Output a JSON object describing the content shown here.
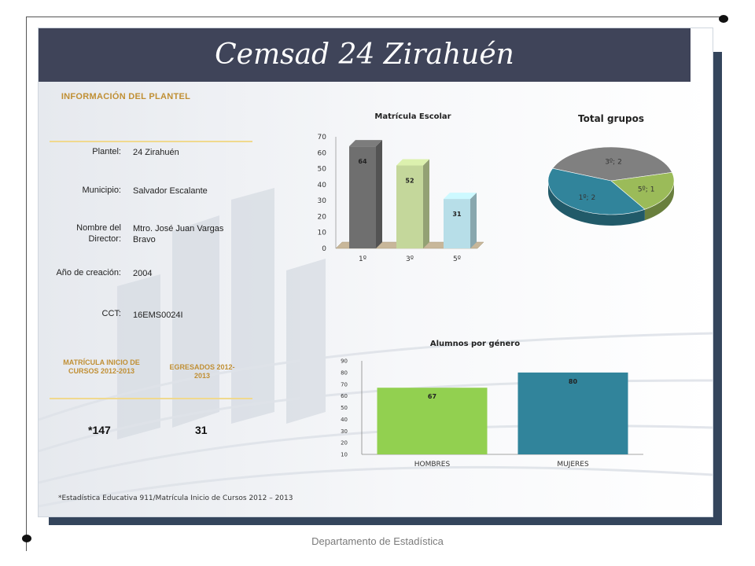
{
  "title": "Cemsad 24 Zirahuén",
  "info": {
    "heading": "INFORMACIÓN DEL PLANTEL",
    "plantel_label": "Plantel:",
    "plantel_value": "24 Zirahuén",
    "municipio_label": "Municipio:",
    "municipio_value": "Salvador Escalante",
    "director_label": "Nombre del Director:",
    "director_value": "Mtro. José Juan Vargas Bravo",
    "anio_label": "Año de creación:",
    "anio_value": "2004",
    "cct_label": "CCT:",
    "cct_value": "16EMS0024I"
  },
  "stats": {
    "matricula_heading": "MATRÍCULA INICIO DE CURSOS 2012-2013",
    "egresados_heading": "EGRESADOS 2012-2013",
    "matricula_value": "*147",
    "egresados_value": "31"
  },
  "footnote": "*Estadística Educativa 911/Matrícula Inicio de Cursos 2012 – 2013",
  "footer": "Departamento de Estadística",
  "colors": {
    "title_band": "#3f4459",
    "frame": "#34455c",
    "heading_gold": "#c08f34"
  },
  "chart_data": [
    {
      "type": "bar",
      "title": "Matrícula Escolar",
      "categories": [
        "1º",
        "3º",
        "5º"
      ],
      "values": [
        64,
        52,
        31
      ],
      "ylim": [
        0,
        70
      ],
      "yticks": [
        0,
        10,
        20,
        30,
        40,
        50,
        60,
        70
      ],
      "colors": [
        "#6f6f6f",
        "#c4d79b",
        "#b7dee8"
      ]
    },
    {
      "type": "pie",
      "title": "Total grupos",
      "slices": [
        {
          "label": "1º; 2",
          "value": 2,
          "color": "#31849b"
        },
        {
          "label": "3º; 2",
          "value": 2,
          "color": "#808080"
        },
        {
          "label": "5º; 1",
          "value": 1,
          "color": "#9bbb59"
        }
      ]
    },
    {
      "type": "bar",
      "title": "Alumnos por género",
      "categories": [
        "HOMBRES",
        "MUJERES"
      ],
      "values": [
        67,
        80
      ],
      "ylim": [
        10,
        90
      ],
      "yticks": [
        10,
        20,
        30,
        40,
        50,
        60,
        70,
        80,
        90
      ],
      "colors": [
        "#92d050",
        "#31849b"
      ]
    }
  ]
}
